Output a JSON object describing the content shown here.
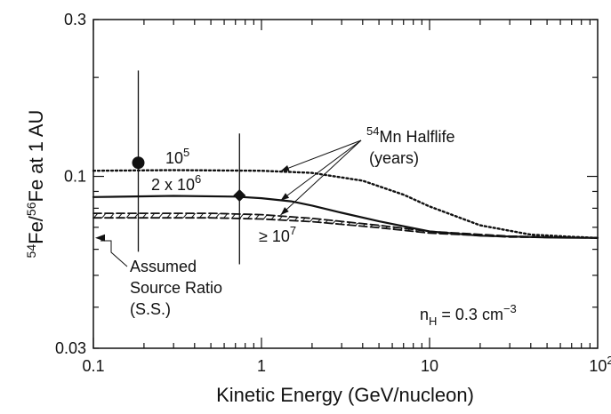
{
  "chart_data": {
    "type": "line",
    "xscale": "log",
    "yscale": "log",
    "xlim": [
      0.1,
      100
    ],
    "ylim": [
      0.03,
      0.3
    ],
    "xlabel": "Kinetic Energy (GeV/nucleon)",
    "ylabel": "54Fe/56Fe at 1 AU",
    "xticks": [
      {
        "v": 0.1,
        "label": "0.1"
      },
      {
        "v": 1,
        "label": "1"
      },
      {
        "v": 10,
        "label": "10"
      },
      {
        "v": 100,
        "label": "10",
        "sup": "2"
      }
    ],
    "yticks": [
      {
        "v": 0.03,
        "label": "0.03"
      },
      {
        "v": 0.1,
        "label": "0.1"
      },
      {
        "v": 0.3,
        "label": "0.3"
      }
    ],
    "series": [
      {
        "halflife": "10^5 years",
        "style": "dotted",
        "x": [
          0.1,
          0.3,
          1,
          2,
          4,
          7,
          10,
          20,
          40,
          70,
          100
        ],
        "y": [
          0.104,
          0.1045,
          0.104,
          0.1025,
          0.097,
          0.088,
          0.081,
          0.071,
          0.0665,
          0.0655,
          0.065
        ]
      },
      {
        "halflife": "2 x 10^6 years",
        "style": "solid",
        "x": [
          0.1,
          0.3,
          0.7,
          1,
          1.5,
          2,
          3,
          5,
          10,
          20,
          50,
          100
        ],
        "y": [
          0.0865,
          0.0872,
          0.0868,
          0.0858,
          0.084,
          0.0815,
          0.0775,
          0.073,
          0.068,
          0.066,
          0.0652,
          0.065
        ]
      },
      {
        "halflife": ">= 10^7 years (upper edge)",
        "style": "dashed",
        "x": [
          0.1,
          0.5,
          1,
          2,
          5,
          10,
          30,
          100
        ],
        "y": [
          0.0772,
          0.0772,
          0.0765,
          0.0745,
          0.071,
          0.068,
          0.0658,
          0.065
        ]
      },
      {
        "halflife": ">= 10^7 years (lower edge)",
        "style": "dashed",
        "x": [
          0.1,
          0.5,
          1,
          2,
          5,
          10,
          30,
          100
        ],
        "y": [
          0.0748,
          0.0748,
          0.0742,
          0.0728,
          0.0698,
          0.0672,
          0.0654,
          0.065
        ]
      }
    ],
    "data_points": [
      {
        "x": 0.185,
        "y": 0.11,
        "y_low": 0.059,
        "y_high": 0.21
      },
      {
        "x": 0.74,
        "y": 0.0875,
        "y_low": 0.054,
        "y_high": 0.135
      }
    ],
    "source_ratio": 0.065,
    "annotations": {
      "label_1e5": {
        "base": "10",
        "sup": "5"
      },
      "label_2e6": {
        "base": "2 x 10",
        "sup": "6"
      },
      "label_1e7": {
        "base": "≥ 10",
        "sup": "7"
      },
      "halflife_title_sup": "54",
      "halflife_title": "Mn Halflife",
      "halflife_units": "(years)",
      "source_line1": "Assumed",
      "source_line2": "Source Ratio",
      "source_line3": "(S.S.)",
      "nh_prefix": "n",
      "nh_sub": "H",
      "nh_value": " = 0.3 cm",
      "nh_sup": "−3"
    },
    "ylabel_parts": {
      "sup1": "54",
      "mid": "Fe/",
      "sup2": "56",
      "end": "Fe at 1 AU"
    },
    "grid": false
  }
}
